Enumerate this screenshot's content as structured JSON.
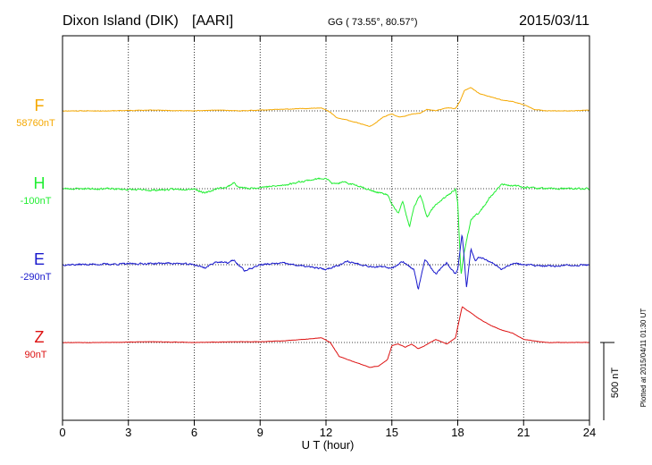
{
  "chart_data": {
    "type": "line",
    "station": "Dixon Island (DIK)",
    "institute": "[AARI]",
    "coords": "GG ( 73.55°,  80.57°)",
    "date": "2015/03/11",
    "xlabel": "U T (hour)",
    "xlim": [
      0,
      24
    ],
    "xticks": [
      0,
      3,
      6,
      9,
      12,
      15,
      18,
      21,
      24
    ],
    "xtick_labels": [
      "0",
      "3",
      "6",
      "9",
      "12",
      "15",
      "18",
      "21",
      "24"
    ],
    "scale_label": "500 nT",
    "scale_nT": 500,
    "plotted_note": "Plotted at 2015/04/11 01:30 UT",
    "series": [
      {
        "name": "F",
        "offset_label": "58760nT",
        "color": "#f5a800",
        "noise": 3,
        "seed": 11,
        "x": [
          0,
          2,
          4,
          6,
          7,
          8,
          9,
          10,
          11,
          11.8,
          12.2,
          12.5,
          13,
          13.5,
          14,
          14.2,
          14.6,
          15,
          15.3,
          15.6,
          15.9,
          16.3,
          16.6,
          17,
          17.5,
          17.9,
          18.1,
          18.3,
          18.6,
          19,
          19.5,
          20,
          20.5,
          21,
          21.5,
          22,
          23,
          24
        ],
        "y": [
          0,
          0,
          5,
          0,
          5,
          0,
          5,
          10,
          15,
          20,
          -10,
          -45,
          -60,
          -80,
          -100,
          -85,
          -40,
          -20,
          -40,
          -35,
          -20,
          -15,
          10,
          0,
          20,
          15,
          60,
          130,
          150,
          110,
          90,
          70,
          60,
          40,
          10,
          0,
          0,
          5
        ]
      },
      {
        "name": "H",
        "offset_label": "-100nT",
        "color": "#22ee33",
        "noise": 10,
        "seed": 23,
        "x": [
          0,
          2,
          4,
          6,
          6.5,
          7,
          7.5,
          7.8,
          8,
          8.5,
          9,
          10,
          11,
          12,
          12.3,
          12.8,
          13.5,
          14,
          14.8,
          15,
          15.3,
          15.5,
          15.8,
          16,
          16.3,
          16.6,
          17,
          17.5,
          17.9,
          18,
          18.05,
          18.15,
          18.3,
          18.6,
          19,
          19.5,
          20,
          21,
          22,
          24
        ],
        "y": [
          0,
          0,
          -10,
          0,
          -30,
          0,
          10,
          40,
          10,
          0,
          10,
          20,
          50,
          70,
          30,
          40,
          20,
          -10,
          -40,
          -100,
          -160,
          -80,
          -250,
          -120,
          -40,
          -180,
          -100,
          -50,
          0,
          -100,
          -250,
          -560,
          -400,
          -200,
          -150,
          -50,
          30,
          10,
          0,
          0
        ]
      },
      {
        "name": "E",
        "offset_label": "-290nT",
        "color": "#1818cc",
        "noise": 10,
        "seed": 37,
        "x": [
          0,
          3,
          5,
          6,
          6.5,
          7,
          7.5,
          7.8,
          8,
          8.3,
          9,
          10,
          12,
          13,
          14,
          15,
          15.5,
          16,
          16.2,
          16.5,
          17,
          17.5,
          17.9,
          18,
          18.2,
          18.4,
          18.6,
          18.8,
          19,
          19.5,
          20,
          20.5,
          21,
          22,
          24
        ],
        "y": [
          0,
          5,
          10,
          0,
          -20,
          20,
          10,
          30,
          0,
          -40,
          0,
          10,
          -30,
          20,
          -10,
          -20,
          20,
          -30,
          -160,
          30,
          -60,
          10,
          -60,
          -30,
          200,
          -150,
          100,
          20,
          50,
          20,
          -30,
          10,
          0,
          -10,
          0
        ]
      },
      {
        "name": "Z",
        "offset_label": "90nT",
        "color": "#dd1111",
        "noise": 2,
        "seed": 53,
        "x": [
          0,
          2,
          4,
          6,
          8,
          9,
          10,
          11,
          11.8,
          12.2,
          12.6,
          13,
          13.5,
          14,
          14.4,
          14.8,
          15,
          15.3,
          15.6,
          15.9,
          16.2,
          16.5,
          17,
          17.5,
          17.9,
          18,
          18.2,
          18.5,
          19,
          19.5,
          20,
          20.5,
          21,
          22,
          24
        ],
        "y": [
          0,
          0,
          5,
          0,
          5,
          5,
          10,
          20,
          30,
          0,
          -90,
          -110,
          -135,
          -160,
          -150,
          -110,
          -20,
          -10,
          -30,
          -10,
          -40,
          -20,
          20,
          -10,
          30,
          100,
          230,
          200,
          150,
          110,
          80,
          60,
          20,
          0,
          0
        ]
      }
    ]
  }
}
